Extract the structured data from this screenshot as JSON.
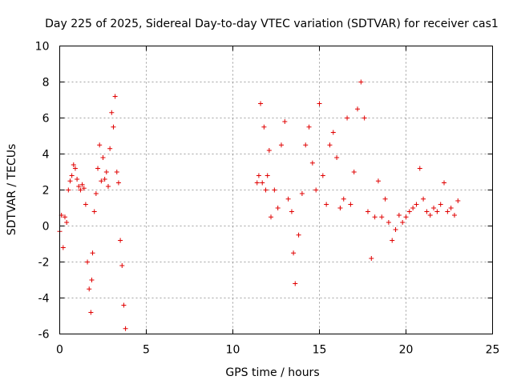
{
  "chart_data": {
    "type": "scatter",
    "title": "Day 225 of 2025, Sidereal Day-to-day VTEC variation (SDTVAR) for receiver cas1",
    "xlabel": "GPS time / hours",
    "ylabel": "SDTVAR / TECUs",
    "xlim": [
      0,
      25
    ],
    "ylim": [
      -6,
      10
    ],
    "xticks": [
      "0",
      "5",
      "10",
      "15",
      "20",
      "25"
    ],
    "yticks": [
      "-6",
      "-4",
      "-2",
      "0",
      "2",
      "4",
      "6",
      "8",
      "10"
    ],
    "grid": true,
    "marker": "+",
    "series_color": "#e00000",
    "segments": [
      {
        "name": "segment-1",
        "x": [
          0.0,
          0.1,
          0.2,
          0.3,
          0.4,
          0.5,
          0.6,
          0.7,
          0.8,
          0.9,
          1.0,
          1.1,
          1.2,
          1.3,
          1.4,
          1.5,
          1.6,
          1.7,
          1.8,
          1.85,
          1.9,
          2.0,
          2.1,
          2.2,
          2.3,
          2.4,
          2.5,
          2.6,
          2.7,
          2.8,
          2.9,
          3.0,
          3.1,
          3.2,
          3.3,
          3.4,
          3.5,
          3.6,
          3.7,
          3.8
        ],
        "y": [
          -0.3,
          0.6,
          -1.2,
          0.5,
          0.2,
          2.0,
          2.5,
          2.8,
          3.4,
          3.2,
          2.6,
          2.2,
          2.0,
          2.3,
          2.1,
          1.2,
          -2.0,
          -3.5,
          -4.8,
          -3.0,
          -1.5,
          0.8,
          1.8,
          3.2,
          4.5,
          2.5,
          3.8,
          2.6,
          3.0,
          2.2,
          4.3,
          6.3,
          5.5,
          7.2,
          3.0,
          2.4,
          -0.8,
          -2.2,
          -4.4,
          -5.7
        ]
      },
      {
        "name": "segment-2",
        "x": [
          11.4,
          11.5,
          11.6,
          11.7,
          11.8,
          11.9,
          12.0,
          12.1,
          12.2,
          12.4,
          12.6,
          12.8,
          13.0,
          13.2,
          13.4,
          13.5,
          13.6,
          13.8,
          14.0,
          14.2,
          14.4,
          14.6,
          14.8,
          15.0,
          15.2,
          15.4,
          15.6,
          15.8,
          16.0,
          16.2,
          16.4,
          16.6,
          16.8,
          17.0,
          17.2,
          17.4,
          17.6,
          17.8,
          18.0,
          18.2,
          18.4,
          18.6,
          18.8,
          19.0,
          19.2,
          19.4,
          19.6,
          19.8,
          20.0,
          20.2,
          20.4,
          20.6,
          20.8,
          21.0,
          21.2,
          21.4,
          21.6,
          21.8,
          22.0,
          22.2,
          22.4,
          22.6,
          22.8,
          23.0
        ],
        "y": [
          2.4,
          2.8,
          6.8,
          2.4,
          5.5,
          2.0,
          2.8,
          4.2,
          0.5,
          2.0,
          1.0,
          4.5,
          5.8,
          1.5,
          0.8,
          -1.5,
          -3.2,
          -0.5,
          1.8,
          4.5,
          5.5,
          3.5,
          2.0,
          6.8,
          2.8,
          1.2,
          4.5,
          5.2,
          3.8,
          1.0,
          1.5,
          6.0,
          1.2,
          3.0,
          6.5,
          8.0,
          6.0,
          0.8,
          -1.8,
          0.5,
          2.5,
          0.5,
          1.5,
          0.2,
          -0.8,
          -0.2,
          0.6,
          0.2,
          0.5,
          0.8,
          1.0,
          1.2,
          3.2,
          1.5,
          0.8,
          0.6,
          1.0,
          0.8,
          1.2,
          2.4,
          0.8,
          1.0,
          0.6,
          1.4
        ]
      }
    ]
  }
}
